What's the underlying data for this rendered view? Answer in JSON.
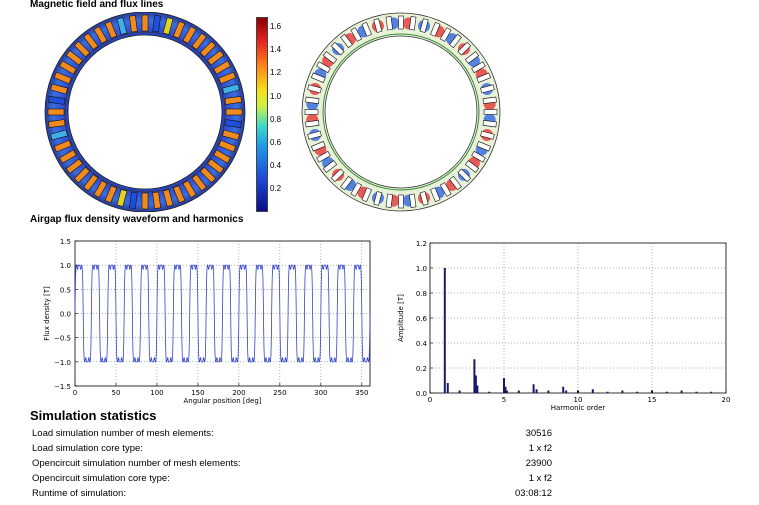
{
  "sections": {
    "field_title": "Magnetic field and flux lines",
    "airgap_title": "Airgap flux density waveform and harmonics",
    "stats_title": "Simulation statistics"
  },
  "colorbar": {
    "ticks": [
      "1.6",
      "1.4",
      "1.2",
      "1.0",
      "0.8",
      "0.6",
      "0.4",
      "0.2"
    ]
  },
  "chart_data": [
    {
      "type": "line",
      "title": "",
      "xlabel": "Angular position [deg]",
      "ylabel": "Flux density [T]",
      "xlim": [
        0,
        360
      ],
      "ylim": [
        -1.5,
        1.5
      ],
      "xticks": [
        "0",
        "50",
        "100",
        "150",
        "200",
        "250",
        "300",
        "350"
      ],
      "yticks": [
        "1.5",
        "1.0",
        "0.5",
        "0.0",
        "−0.5",
        "−1.0",
        "−1.5"
      ],
      "grid": true,
      "series": [
        {
          "color": "#3344cc",
          "pole_pairs": 18,
          "peak": 1.0,
          "trough": -1.0
        }
      ]
    },
    {
      "type": "bar",
      "title": "",
      "xlabel": "Harmonic order",
      "ylabel": "Amplitude [T]",
      "xlim": [
        0,
        20
      ],
      "ylim": [
        0,
        1.2
      ],
      "xticks": [
        "0",
        "5",
        "10",
        "15",
        "20"
      ],
      "yticks": [
        "1.2",
        "1.0",
        "0.8",
        "0.6",
        "0.4",
        "0.2",
        "0.0"
      ],
      "grid": true,
      "color": "#1a1a66",
      "x": [
        1.0,
        1.2,
        2.0,
        3.0,
        3.1,
        3.2,
        4.0,
        5.0,
        5.1,
        5.2,
        6.0,
        7.0,
        7.2,
        8.0,
        9.0,
        9.2,
        10.0,
        11.0,
        12.0,
        13.0,
        14.0,
        15.0,
        16.0,
        17.0,
        18.0,
        19.0
      ],
      "values": [
        1.0,
        0.08,
        0.02,
        0.27,
        0.14,
        0.06,
        0.01,
        0.12,
        0.05,
        0.02,
        0.02,
        0.07,
        0.03,
        0.02,
        0.05,
        0.02,
        0.02,
        0.03,
        0.01,
        0.02,
        0.01,
        0.02,
        0.01,
        0.02,
        0.01,
        0.01
      ]
    }
  ],
  "stats": [
    {
      "label": "Load simulation number of mesh elements:",
      "value": "30516"
    },
    {
      "label": "Load simulation core type:",
      "value": "1 x f2"
    },
    {
      "label": "Opencircuit simulation number of mesh elements:",
      "value": "23900"
    },
    {
      "label": "Opencircuit simulation core type:",
      "value": "1 x f2"
    },
    {
      "label": "Runtime of simulation:",
      "value": "03:08:12"
    }
  ]
}
